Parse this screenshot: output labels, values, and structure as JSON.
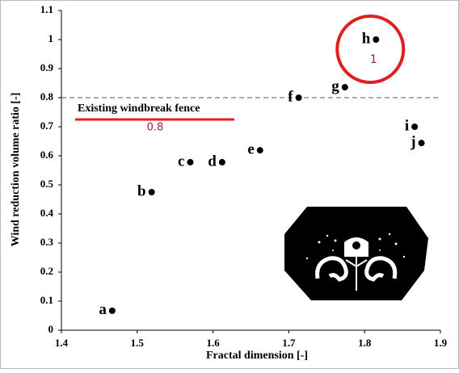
{
  "chart_data": {
    "type": "scatter",
    "x_label": "Fractal dimension [-]",
    "y_label": "Wind reduction volume ratio [-]",
    "xlim": [
      1.4,
      1.9
    ],
    "xticks": [
      1.4,
      1.5,
      1.6,
      1.7,
      1.8,
      1.9
    ],
    "ylim": [
      0,
      1.1
    ],
    "yticks": [
      0,
      0.1,
      0.2,
      0.3,
      0.4,
      0.5,
      0.6,
      0.7,
      0.8,
      0.9,
      1,
      1.1
    ],
    "series": [
      {
        "color": "#000000",
        "point_labels": [
          "a",
          "b",
          "c",
          "d",
          "e",
          "f",
          "g",
          "h",
          "i",
          "j"
        ],
        "x": [
          1.467,
          1.519,
          1.57,
          1.612,
          1.662,
          1.713,
          1.774,
          1.815,
          1.866,
          1.875
        ],
        "values": [
          0.067,
          0.475,
          0.578,
          0.578,
          0.619,
          0.8,
          0.836,
          1,
          0.7,
          0.644
        ]
      }
    ],
    "reference_line": {
      "value": 0.8,
      "text": "Existing windbreak fence",
      "color": "#e02020"
    },
    "highlight_color": "#e02020"
  }
}
